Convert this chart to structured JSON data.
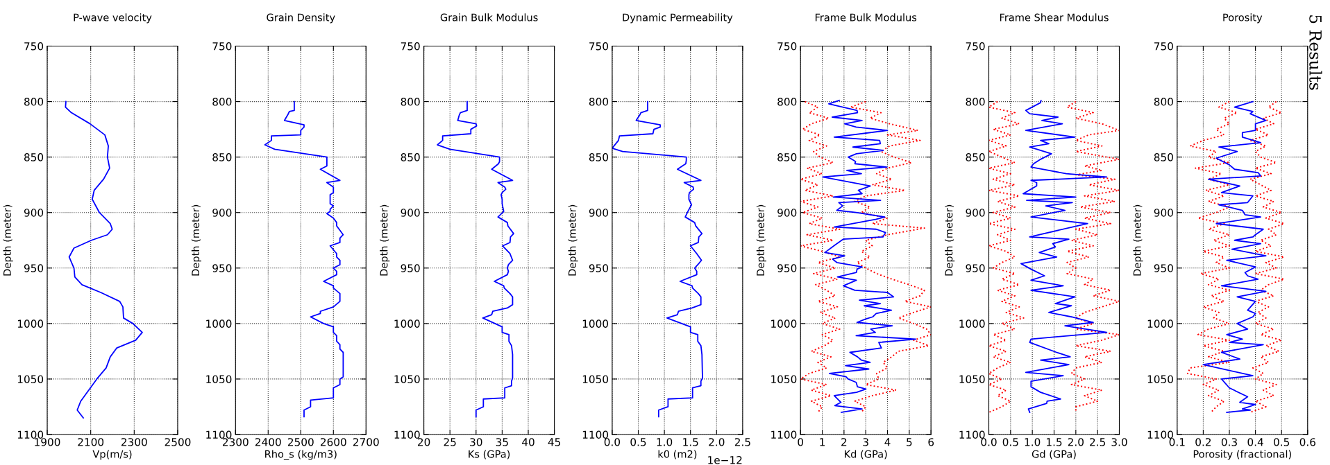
{
  "chart_data": [
    {
      "type": "line",
      "title": "P-wave velocity",
      "xlabel": "Vp(m/s)",
      "ylabel": "Depth (meter)",
      "xlim": [
        1900,
        2500
      ],
      "xticks": [
        1900,
        2100,
        2300,
        2500
      ],
      "ylim": [
        1100,
        750
      ],
      "yticks": [
        750,
        800,
        850,
        900,
        950,
        1000,
        1050,
        1100
      ],
      "grid": true,
      "series": [
        {
          "color": "#0000ff",
          "line_style": "solid",
          "x": [
            1986,
            1984,
            2011,
            2097,
            2165,
            2181,
            2177,
            2187,
            2159,
            2116,
            2107,
            2140,
            2190,
            2199,
            2177,
            2103,
            2023,
            2001,
            2023,
            2027,
            2060,
            2146,
            2233,
            2248,
            2251,
            2294,
            2337,
            2307,
            2220,
            2190,
            2171,
            2128,
            2091,
            2054,
            2038,
            2066
          ],
          "values": [
            800,
            805,
            810,
            820,
            830,
            840,
            850,
            860,
            870,
            880,
            888,
            900,
            910,
            915,
            920,
            925,
            932,
            940,
            950,
            958,
            965,
            972,
            980,
            985,
            995,
            1000,
            1008,
            1015,
            1022,
            1030,
            1040,
            1050,
            1060,
            1070,
            1078,
            1085
          ]
        }
      ]
    },
    {
      "type": "line",
      "title": "Grain Density",
      "xlabel": "Rho_s (kg/m3)",
      "ylabel": "Depth (meter)",
      "xlim": [
        2300,
        2700
      ],
      "xticks": [
        2300,
        2400,
        2500,
        2600,
        2700
      ],
      "ylim": [
        1100,
        750
      ],
      "yticks": [
        750,
        800,
        850,
        900,
        950,
        1000,
        1050,
        1100
      ],
      "grid": true,
      "series": [
        {
          "color": "#0000ff",
          "line_style": "solid",
          "x": [
            2480,
            2480,
            2465,
            2460,
            2450,
            2510,
            2510,
            2500,
            2500,
            2410,
            2410,
            2390,
            2420,
            2580,
            2580,
            2560,
            2620,
            2580,
            2600,
            2600,
            2590,
            2590,
            2600,
            2590,
            2590,
            2580,
            2600,
            2610,
            2610,
            2630,
            2620,
            2620,
            2590,
            2610,
            2610,
            2620,
            2620,
            2600,
            2610,
            2610,
            2570,
            2600,
            2600,
            2620,
            2620,
            2600,
            2560,
            2560,
            2530,
            2570,
            2600,
            2600,
            2610,
            2610,
            2620,
            2620,
            2630,
            2630,
            2620,
            2620,
            2600,
            2600,
            2530,
            2530,
            2510,
            2510
          ],
          "values": [
            800,
            808,
            809,
            812,
            817,
            821,
            823,
            826,
            830,
            831,
            835,
            839,
            843,
            850,
            858,
            861,
            871,
            873,
            877,
            882,
            884,
            892,
            894,
            897,
            899,
            901,
            905,
            909,
            912,
            920,
            923,
            927,
            930,
            937,
            940,
            943,
            947,
            950,
            953,
            956,
            962,
            966,
            968,
            973,
            980,
            985,
            989,
            991,
            994,
            1000,
            1003,
            1008,
            1011,
            1016,
            1019,
            1023,
            1026,
            1048,
            1050,
            1055,
            1058,
            1067,
            1069,
            1075,
            1078,
            1084
          ]
        }
      ]
    },
    {
      "type": "line",
      "title": "Grain Bulk Modulus",
      "xlabel": "Ks (GPa)",
      "ylabel": "Depth (meter)",
      "xlim": [
        20,
        45
      ],
      "xticks": [
        20,
        25,
        30,
        35,
        40,
        45
      ],
      "ylim": [
        1100,
        750
      ],
      "yticks": [
        750,
        800,
        850,
        900,
        950,
        1000,
        1050,
        1100
      ],
      "grid": true,
      "series": [
        {
          "color": "#0000ff",
          "line_style": "solid",
          "x": [
            28.3,
            28.3,
            27.0,
            26.8,
            26.5,
            30.0,
            30.1,
            29.0,
            29.0,
            23.6,
            23.6,
            22.6,
            25.0,
            34.5,
            34.5,
            34.3,
            33.0,
            37.0,
            34.2,
            35.5,
            35.7,
            35.0,
            34.8,
            35.0,
            35.0,
            35.3,
            34.2,
            36.0,
            36.1,
            37.2,
            36.6,
            36.5,
            35.1,
            36.5,
            37.0,
            36.2,
            36.0,
            36.2,
            36.0,
            33.5,
            35.3,
            35.4,
            36.5,
            37.0,
            37.0,
            36.0,
            33.2,
            33.0,
            31.3,
            35.0,
            35.0,
            36.3,
            36.3,
            36.8,
            37.0,
            37.0,
            36.8,
            36.8,
            35.5,
            35.5,
            31.4,
            31.4,
            30.0,
            30.0
          ],
          "values": [
            800,
            808,
            810,
            812,
            817,
            820,
            822,
            825,
            829,
            831,
            835,
            839,
            843,
            850,
            854,
            856,
            861,
            871,
            873,
            877,
            879,
            882,
            884,
            888,
            892,
            899,
            904,
            909,
            912,
            919,
            922,
            927,
            930,
            937,
            943,
            947,
            950,
            953,
            956,
            962,
            966,
            968,
            973,
            976,
            983,
            986,
            989,
            992,
            995,
            1003,
            1008,
            1010,
            1016,
            1020,
            1028,
            1049,
            1052,
            1056,
            1058,
            1067,
            1068,
            1075,
            1078,
            1084
          ]
        }
      ]
    },
    {
      "type": "line",
      "title": "Dynamic Permeability",
      "xlabel": "k0 (m2)",
      "ylabel": "Depth (meter)",
      "xlim": [
        0.0,
        2.5
      ],
      "xticks": [
        {
          "value": 0,
          "label": "0.0"
        },
        0.5,
        {
          "value": 1,
          "label": "1.0"
        },
        1.5,
        {
          "value": 2,
          "label": "2.0"
        },
        2.5
      ],
      "ylim": [
        1100,
        750
      ],
      "yticks": [
        750,
        800,
        850,
        900,
        950,
        1000,
        1050,
        1100
      ],
      "grid": true,
      "annotations": [
        "1e−12"
      ],
      "series": [
        {
          "color": "#0000ff",
          "line_style": "solid",
          "x": [
            0.68,
            0.68,
            0.55,
            0.53,
            0.46,
            0.92,
            0.92,
            0.8,
            0.78,
            0.14,
            0.12,
            0.0,
            0.2,
            1.42,
            1.42,
            1.41,
            1.25,
            1.7,
            1.38,
            1.55,
            1.56,
            1.48,
            1.47,
            1.47,
            1.52,
            1.45,
            1.4,
            1.58,
            1.6,
            1.72,
            1.66,
            1.65,
            1.5,
            1.62,
            1.71,
            1.64,
            1.58,
            1.62,
            1.62,
            1.3,
            1.53,
            1.54,
            1.65,
            1.7,
            1.7,
            1.53,
            1.27,
            1.25,
            1.05,
            1.5,
            1.5,
            1.64,
            1.64,
            1.7,
            1.72,
            1.73,
            1.7,
            1.7,
            1.54,
            1.54,
            1.07,
            1.07,
            0.89,
            0.89
          ],
          "values": [
            800,
            808,
            810,
            812,
            817,
            821,
            823,
            825,
            829,
            831,
            835,
            842,
            845,
            850,
            853,
            856,
            861,
            871,
            873,
            877,
            879,
            882,
            884,
            888,
            893,
            899,
            904,
            909,
            912,
            919,
            922,
            927,
            930,
            937,
            943,
            947,
            950,
            953,
            956,
            962,
            966,
            968,
            973,
            976,
            983,
            986,
            989,
            992,
            995,
            1003,
            1008,
            1010,
            1016,
            1020,
            1028,
            1049,
            1052,
            1056,
            1058,
            1067,
            1068,
            1075,
            1078,
            1084
          ]
        }
      ]
    },
    {
      "type": "line",
      "title": "Frame Bulk Modulus",
      "xlabel": "Kd (GPa)",
      "ylabel": "Depth (meter)",
      "xlim": [
        0,
        6
      ],
      "xticks": [
        0,
        1,
        2,
        3,
        4,
        5,
        6
      ],
      "ylim": [
        1100,
        750
      ],
      "yticks": [
        750,
        800,
        850,
        900,
        950,
        1000,
        1050,
        1100
      ],
      "grid": true,
      "series": [
        {
          "color": "#ff0000",
          "line_style": "dotted",
          "x": [
            0.2,
            0.8,
            0.4,
            1.3,
            0.5,
            0.1,
            0.9,
            0.4,
            1.2,
            0.6,
            0.9,
            1.5,
            0.3,
            1.0,
            0.0,
            0.8,
            0.2,
            1.5,
            0.0,
            0.8,
            0.1,
            1.0,
            0.4,
            1.8,
            0.3,
            1.5,
            0.0,
            1.0,
            1.8,
            0.8,
            1.6,
            0.6,
            1.7,
            0.7,
            1.2,
            1.6,
            0.8,
            1.7,
            0.9,
            1.6,
            1.0,
            1.8,
            1.0,
            1.5,
            1.1,
            0.5,
            1.4,
            0.8,
            1.2,
            0.4,
            0.0,
            1.2,
            0.5,
            1.4,
            0.5,
            1.0,
            0.8
          ],
          "values": [
            800,
            805,
            810,
            815,
            820,
            825,
            830,
            835,
            840,
            845,
            850,
            855,
            860,
            865,
            870,
            875,
            880,
            885,
            890,
            895,
            900,
            905,
            910,
            915,
            920,
            925,
            930,
            935,
            940,
            945,
            950,
            955,
            960,
            965,
            970,
            975,
            980,
            985,
            990,
            995,
            1000,
            1005,
            1010,
            1015,
            1020,
            1025,
            1030,
            1035,
            1040,
            1045,
            1050,
            1055,
            1060,
            1065,
            1070,
            1075,
            1080
          ]
        },
        {
          "color": "#ff0000",
          "line_style": "dotted",
          "x": [
            3.0,
            2.3,
            3.7,
            3.2,
            4.1,
            5.4,
            4.0,
            5.5,
            4.1,
            3.7,
            4.3,
            5.1,
            4.0,
            3.5,
            4.2,
            3.3,
            4.8,
            3.0,
            2.5,
            3.2,
            2.8,
            4.0,
            3.3,
            5.7,
            4.0,
            3.0,
            3.3,
            2.8,
            3.2,
            2.6,
            3.0,
            3.5,
            4.2,
            5.0,
            5.7,
            5.5,
            4.8,
            6.0,
            5.2,
            4.5,
            5.2,
            5.8,
            6.0,
            5.2,
            5.9,
            4.5,
            4.2,
            3.8,
            4.0,
            3.5,
            3.6,
            3.0,
            4.4,
            3.3,
            2.5,
            3.0,
            2.8
          ],
          "values": [
            800,
            805,
            810,
            815,
            820,
            826,
            830,
            835,
            840,
            845,
            850,
            855,
            860,
            865,
            870,
            875,
            880,
            885,
            890,
            895,
            900,
            905,
            910,
            914,
            920,
            925,
            930,
            935,
            940,
            945,
            950,
            955,
            960,
            965,
            970,
            975,
            980,
            985,
            990,
            995,
            1000,
            1005,
            1010,
            1015,
            1020,
            1025,
            1030,
            1035,
            1040,
            1045,
            1050,
            1055,
            1060,
            1065,
            1070,
            1075,
            1080
          ]
        },
        {
          "color": "#0000ff",
          "line_style": "solid",
          "x": [
            1.78,
            1.3,
            2.6,
            2.62,
            1.46,
            2.83,
            2.03,
            2.56,
            4.0,
            1.55,
            3.64,
            3.67,
            2.41,
            3.8,
            2.57,
            2.2,
            2.53,
            2.5,
            3.97,
            2.13,
            2.8,
            1.02,
            3.21,
            2.66,
            2.83,
            1.51,
            3.68,
            1.76,
            1.94,
            1.67,
            2.56,
            3.87,
            3.48,
            1.55,
            3.48,
            3.91,
            3.79,
            1.96,
            1.6,
            1.12,
            2.03,
            1.48,
            1.67,
            2.83,
            2.6,
            2.57,
            1.7,
            2.57,
            1.97,
            2.5,
            4.0,
            4.28,
            2.71,
            3.67,
            2.93,
            4.18,
            3.48,
            3.32,
            2.99,
            2.6,
            4.22,
            3.23,
            3.44,
            2.56,
            5.3,
            3.6,
            3.72,
            2.27,
            2.62,
            2.8,
            3.2,
            2.07,
            3.14,
            1.33,
            2.09,
            2.19,
            2.56,
            2.62,
            3.01,
            2.58,
            1.55,
            1.86,
            1.58,
            2.83,
            1.88
          ],
          "values": [
            799,
            802,
            808,
            810,
            814,
            817,
            820,
            823,
            826,
            832,
            835,
            838,
            841,
            844,
            847,
            850,
            854,
            856,
            859,
            862,
            865,
            868,
            876,
            880,
            883,
            886,
            889,
            891,
            894,
            898,
            900,
            904,
            906,
            913,
            915,
            918,
            922,
            924,
            929,
            936,
            939,
            942,
            945,
            949,
            951,
            954,
            958,
            961,
            966,
            970,
            972,
            976,
            979,
            982,
            984,
            988,
            991,
            994,
            996,
            999,
            1002,
            1005,
            1008,
            1011,
            1014,
            1017,
            1022,
            1026,
            1030,
            1033,
            1035,
            1038,
            1041,
            1045,
            1048,
            1050,
            1053,
            1057,
            1059,
            1062,
            1065,
            1071,
            1074,
            1077,
            1080
          ]
        }
      ]
    },
    {
      "type": "line",
      "title": "Frame Shear Modulus",
      "xlabel": "Gd (GPa)",
      "ylabel": "Depth (meter)",
      "xlim": [
        0.0,
        3.0
      ],
      "xticks": [
        {
          "value": 0,
          "label": "0.0"
        },
        0.5,
        {
          "value": 1,
          "label": "1.0"
        },
        1.5,
        {
          "value": 2,
          "label": "2.0"
        },
        2.5,
        {
          "value": 3,
          "label": "3.0"
        }
      ],
      "ylim": [
        1100,
        750
      ],
      "yticks": [
        750,
        800,
        850,
        900,
        950,
        1000,
        1050,
        1100
      ],
      "grid": true,
      "series": [
        {
          "color": "#ff0000",
          "line_style": "dotted",
          "x": [
            0.2,
            0.0,
            0.6,
            0.3,
            0.7,
            0.1,
            0.5,
            0.0,
            0.4,
            0.0,
            0.3,
            0.6,
            0.0,
            0.5,
            0.1,
            0.6,
            0.0,
            0.7,
            0.2,
            0.6,
            0.1,
            0.5,
            0.0,
            0.6,
            0.2,
            0.5,
            0.0,
            0.4,
            0.6,
            0.3,
            0.1,
            0.6,
            0.3,
            0.7,
            0.2,
            0.6,
            0.3,
            0.7,
            0.4,
            0.8,
            0.3,
            0.6,
            0.1,
            0.4,
            0.0,
            0.4,
            0.1,
            0.5,
            0.2,
            0.0,
            0.3,
            0.0,
            0.4,
            0.2,
            0.5,
            0.3,
            0.0
          ],
          "values": [
            800,
            805,
            810,
            815,
            820,
            825,
            830,
            835,
            840,
            845,
            850,
            855,
            860,
            865,
            870,
            875,
            880,
            885,
            890,
            895,
            900,
            905,
            910,
            915,
            920,
            925,
            930,
            935,
            940,
            945,
            950,
            955,
            960,
            965,
            970,
            975,
            980,
            985,
            990,
            995,
            1000,
            1005,
            1010,
            1015,
            1020,
            1025,
            1030,
            1035,
            1040,
            1045,
            1050,
            1055,
            1060,
            1065,
            1070,
            1075,
            1080
          ]
        },
        {
          "color": "#ff0000",
          "line_style": "dotted",
          "x": [
            2.0,
            1.8,
            2.4,
            2.0,
            2.6,
            3.0,
            2.3,
            2.0,
            2.6,
            2.0,
            3.0,
            2.2,
            2.6,
            2.0,
            2.9,
            2.3,
            3.0,
            2.2,
            2.9,
            2.1,
            2.8,
            2.2,
            2.8,
            2.0,
            2.5,
            1.9,
            2.4,
            1.8,
            2.3,
            1.8,
            2.0,
            1.8,
            2.4,
            2.2,
            2.8,
            2.4,
            3.0,
            2.6,
            2.2,
            2.0,
            2.4,
            2.0,
            3.0,
            2.6,
            2.0,
            2.8,
            2.2,
            2.6,
            2.0,
            1.9,
            2.2,
            1.9,
            2.6,
            2.2,
            2.5,
            2.0,
            2.0
          ],
          "values": [
            800,
            805,
            810,
            815,
            820,
            826,
            830,
            835,
            840,
            845,
            852,
            858,
            862,
            866,
            870,
            875,
            880,
            885,
            890,
            895,
            900,
            905,
            910,
            915,
            920,
            925,
            930,
            935,
            940,
            945,
            950,
            955,
            960,
            965,
            970,
            975,
            980,
            985,
            990,
            995,
            1000,
            1005,
            1010,
            1015,
            1020,
            1025,
            1030,
            1035,
            1040,
            1045,
            1050,
            1055,
            1060,
            1065,
            1070,
            1075,
            1080
          ]
        },
        {
          "color": "#0000ff",
          "line_style": "solid",
          "x": [
            1.2,
            1.19,
            0.85,
            0.94,
            1.59,
            1.22,
            1.69,
            0.85,
            1.98,
            1.19,
            1.38,
            0.94,
            1.44,
            1.19,
            1.03,
            0.97,
            1.38,
            1.78,
            2.71,
            0.97,
            1.1,
            1.1,
            0.79,
            2.0,
            0.87,
            1.92,
            1.31,
            1.75,
            0.97,
            2.27,
            1.92,
            0.94,
            1.84,
            1.47,
            1.53,
            1.16,
            1.56,
            0.74,
            0.97,
            1.28,
            0.97,
            1.71,
            0.97,
            1.98,
            1.53,
            1.9,
            1.38,
            1.9,
            2.4,
            1.75,
            2.71,
            0.97,
            0.94,
            1.56,
            1.87,
            1.19,
            1.84,
            0.85,
            1.71,
            0.97,
            0.97,
            1.19,
            1.65,
            1.34,
            1.33,
            0.91,
            0.94
          ],
          "values": [
            799,
            801,
            808,
            811,
            814,
            817,
            820,
            826,
            832,
            835,
            838,
            841,
            847,
            852,
            856,
            859,
            862,
            865,
            868,
            871,
            873,
            876,
            883,
            886,
            889,
            891,
            894,
            898,
            904,
            910,
            913,
            922,
            924,
            928,
            931,
            936,
            940,
            946,
            951,
            957,
            961,
            966,
            970,
            976,
            982,
            984,
            990,
            994,
            999,
            1002,
            1008,
            1014,
            1017,
            1026,
            1030,
            1033,
            1037,
            1044,
            1047,
            1052,
            1057,
            1062,
            1068,
            1070,
            1072,
            1077,
            1080
          ]
        }
      ]
    },
    {
      "type": "line",
      "title": "Porosity",
      "xlabel": "Porosity (fractional)",
      "ylabel": "Depth (meter)",
      "xlim": [
        0.1,
        0.6
      ],
      "xticks": [
        0.1,
        0.2,
        0.3,
        0.4,
        0.5,
        0.6
      ],
      "ylim": [
        1100,
        750
      ],
      "yticks": [
        750,
        800,
        850,
        900,
        950,
        1000,
        1050,
        1100
      ],
      "grid": true,
      "annotations": [
        "5 Results"
      ],
      "series": [
        {
          "color": "#ff0000",
          "line_style": "dotted",
          "x": [
            0.3,
            0.26,
            0.33,
            0.28,
            0.3,
            0.25,
            0.28,
            0.2,
            0.15,
            0.25,
            0.22,
            0.3,
            0.17,
            0.27,
            0.22,
            0.3,
            0.21,
            0.28,
            0.22,
            0.3,
            0.25,
            0.18,
            0.28,
            0.22,
            0.3,
            0.24,
            0.3,
            0.2,
            0.28,
            0.25,
            0.3,
            0.19,
            0.26,
            0.22,
            0.3,
            0.23,
            0.28,
            0.2,
            0.26,
            0.24,
            0.3,
            0.22,
            0.18,
            0.3,
            0.2,
            0.28,
            0.22,
            0.3,
            0.15,
            0.14,
            0.25,
            0.2,
            0.26,
            0.22,
            0.28,
            0.25,
            0.23
          ],
          "values": [
            800,
            805,
            810,
            815,
            820,
            825,
            830,
            835,
            840,
            845,
            850,
            855,
            860,
            865,
            870,
            875,
            880,
            885,
            890,
            895,
            900,
            905,
            910,
            915,
            920,
            925,
            930,
            935,
            940,
            945,
            950,
            955,
            960,
            965,
            970,
            975,
            980,
            985,
            990,
            995,
            1000,
            1005,
            1010,
            1015,
            1020,
            1025,
            1030,
            1035,
            1040,
            1045,
            1050,
            1055,
            1060,
            1065,
            1070,
            1075,
            1080
          ]
        },
        {
          "color": "#ff0000",
          "line_style": "dotted",
          "x": [
            0.48,
            0.45,
            0.5,
            0.43,
            0.47,
            0.4,
            0.45,
            0.38,
            0.44,
            0.4,
            0.42,
            0.48,
            0.4,
            0.46,
            0.38,
            0.42,
            0.46,
            0.4,
            0.47,
            0.43,
            0.5,
            0.44,
            0.51,
            0.45,
            0.48,
            0.42,
            0.46,
            0.4,
            0.51,
            0.44,
            0.48,
            0.4,
            0.51,
            0.45,
            0.42,
            0.47,
            0.4,
            0.45,
            0.41,
            0.44,
            0.4,
            0.47,
            0.42,
            0.5,
            0.44,
            0.49,
            0.42,
            0.45,
            0.39,
            0.43,
            0.4,
            0.48,
            0.43,
            0.47,
            0.4,
            0.44,
            0.38
          ],
          "values": [
            800,
            805,
            810,
            815,
            820,
            825,
            830,
            835,
            840,
            845,
            850,
            855,
            860,
            865,
            870,
            875,
            880,
            885,
            890,
            895,
            900,
            905,
            910,
            915,
            920,
            925,
            930,
            935,
            940,
            945,
            950,
            955,
            960,
            965,
            970,
            975,
            980,
            985,
            990,
            995,
            1000,
            1005,
            1010,
            1015,
            1020,
            1025,
            1030,
            1035,
            1040,
            1045,
            1050,
            1055,
            1060,
            1065,
            1070,
            1075,
            1080
          ]
        },
        {
          "color": "#0000ff",
          "line_style": "solid",
          "x": [
            0.39,
            0.32,
            0.39,
            0.38,
            0.44,
            0.4,
            0.4,
            0.35,
            0.35,
            0.42,
            0.26,
            0.33,
            0.25,
            0.3,
            0.32,
            0.41,
            0.42,
            0.22,
            0.34,
            0.27,
            0.39,
            0.37,
            0.26,
            0.35,
            0.36,
            0.42,
            0.25,
            0.43,
            0.4,
            0.39,
            0.32,
            0.42,
            0.31,
            0.44,
            0.29,
            0.4,
            0.36,
            0.37,
            0.41,
            0.27,
            0.44,
            0.33,
            0.4,
            0.37,
            0.4,
            0.39,
            0.33,
            0.37,
            0.29,
            0.35,
            0.3,
            0.43,
            0.27,
            0.34,
            0.2,
            0.39,
            0.27,
            0.3,
            0.37,
            0.34,
            0.4,
            0.35,
            0.38,
            0.29
          ],
          "values": [
            800,
            805,
            809,
            811,
            817,
            820,
            826,
            828,
            832,
            837,
            841,
            845,
            851,
            857,
            861,
            864,
            867,
            870,
            876,
            882,
            885,
            891,
            893,
            898,
            902,
            904,
            910,
            915,
            920,
            922,
            925,
            928,
            933,
            939,
            943,
            949,
            954,
            957,
            960,
            966,
            971,
            976,
            980,
            988,
            991,
            994,
            1000,
            1005,
            1010,
            1014,
            1017,
            1019,
            1026,
            1032,
            1037,
            1047,
            1050,
            1058,
            1066,
            1071,
            1073,
            1077,
            1078,
            1080
          ]
        }
      ]
    }
  ]
}
